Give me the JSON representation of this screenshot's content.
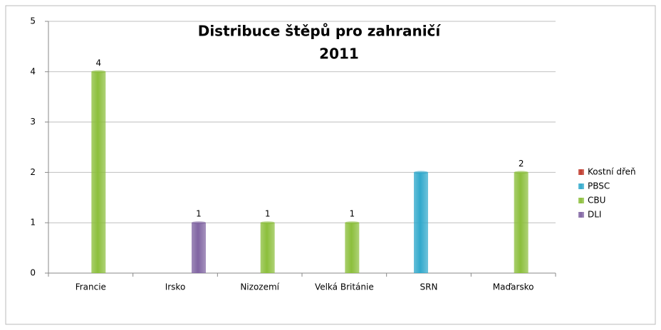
{
  "chart_data": {
    "type": "bar",
    "title": [
      "Distribuce štěpů pro zahraničí",
      "2011"
    ],
    "categories": [
      "Francie",
      "Irsko",
      "Nizozemí",
      "Velká Británie",
      "SRN",
      "Maďarsko"
    ],
    "series": [
      {
        "name": "Kostní dřeň",
        "color": "#c0392b",
        "values": [
          null,
          null,
          null,
          null,
          null,
          null
        ],
        "data_labels": false
      },
      {
        "name": "PBSC",
        "color": "#31a9cc",
        "values": [
          null,
          null,
          null,
          null,
          2,
          null
        ],
        "data_labels": false
      },
      {
        "name": "CBU",
        "color": "#8cbf3c",
        "values": [
          4,
          null,
          1,
          1,
          null,
          2
        ],
        "data_labels": true
      },
      {
        "name": "DLI",
        "color": "#8064a2",
        "values": [
          null,
          1,
          null,
          null,
          null,
          null
        ],
        "data_labels": true
      }
    ],
    "ylim": [
      0,
      5
    ],
    "yticks": [
      0,
      1,
      2,
      3,
      4,
      5
    ],
    "grid": true,
    "legend": "right"
  }
}
